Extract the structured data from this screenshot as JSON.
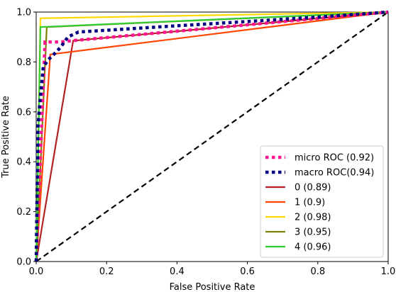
{
  "chart_data": {
    "type": "line",
    "xlabel": "False Positive Rate",
    "ylabel": "True Positive Rate",
    "xlim": [
      0,
      1
    ],
    "ylim": [
      0,
      1
    ],
    "xticks": [
      "0.0",
      "0.2",
      "0.4",
      "0.6",
      "0.8",
      "1.0"
    ],
    "yticks": [
      "0.0",
      "0.2",
      "0.4",
      "0.6",
      "0.8",
      "1.0"
    ],
    "grid": false,
    "legend_position": "lower-right",
    "series": [
      {
        "name": "micro ROC (0.92)",
        "color": "#ff1493",
        "style": "dotted",
        "x": [
          0,
          0.025,
          0.07,
          0.1,
          1.0
        ],
        "y": [
          0,
          0.88,
          0.88,
          0.885,
          1.0
        ]
      },
      {
        "name": "macro ROC(0.94)",
        "color": "#000080",
        "style": "dotted",
        "x": [
          0,
          0.005,
          0.01,
          0.02,
          0.035,
          0.05,
          0.07,
          0.09,
          0.12,
          0.2,
          0.4,
          0.6,
          0.8,
          1.0
        ],
        "y": [
          0,
          0.54,
          0.63,
          0.78,
          0.81,
          0.83,
          0.86,
          0.9,
          0.92,
          0.927,
          0.945,
          0.962,
          0.98,
          1.0
        ]
      },
      {
        "name": "0 (0.89)",
        "color": "#b22222",
        "style": "solid",
        "x": [
          0,
          0.105,
          1.0
        ],
        "y": [
          0,
          0.885,
          1.0
        ]
      },
      {
        "name": "1 (0.9)",
        "color": "#ff4500",
        "style": "solid",
        "x": [
          0,
          0.04,
          1.0
        ],
        "y": [
          0,
          0.83,
          1.0
        ]
      },
      {
        "name": "2 (0.98)",
        "color": "#ffd700",
        "style": "solid",
        "x": [
          0,
          0.012,
          1.0
        ],
        "y": [
          0,
          0.975,
          1.0
        ]
      },
      {
        "name": "3 (0.95)",
        "color": "#808000",
        "style": "solid",
        "x": [
          0,
          0.03,
          1.0
        ],
        "y": [
          0,
          0.94,
          1.0
        ]
      },
      {
        "name": "4 (0.96)",
        "color": "#32cd32",
        "style": "solid",
        "x": [
          0,
          0.012,
          1.0
        ],
        "y": [
          0,
          0.94,
          1.0
        ]
      }
    ],
    "reference_line": {
      "color": "#000000",
      "style": "dashed",
      "x": [
        0,
        1
      ],
      "y": [
        0,
        1
      ]
    }
  }
}
